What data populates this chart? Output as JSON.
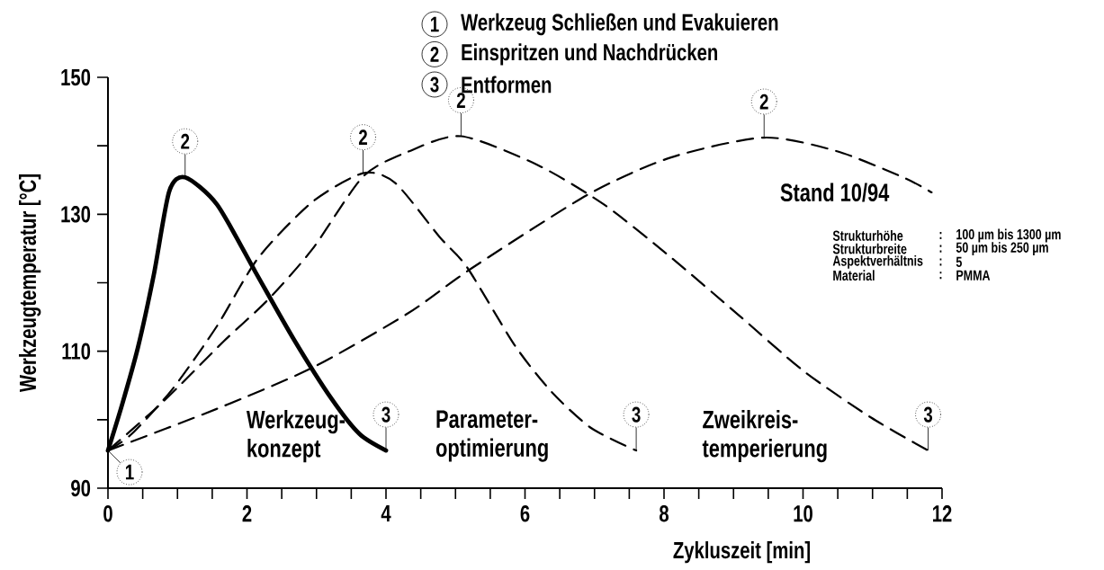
{
  "chart_data": {
    "type": "line",
    "xlabel": "Zykluszeit [min]",
    "ylabel": "Werkzeugtemperatur [°C]",
    "xlim": [
      0,
      12
    ],
    "ylim": [
      90,
      150
    ],
    "xticks": [
      0,
      {
        "value": 0.5,
        "label": null
      },
      {
        "value": 1,
        "label": null
      },
      {
        "value": 1.5,
        "label": null
      },
      2,
      {
        "value": 2.5,
        "label": null
      },
      {
        "value": 3,
        "label": null
      },
      {
        "value": 3.5,
        "label": null
      },
      4,
      {
        "value": 4.5,
        "label": null
      },
      {
        "value": 5,
        "label": null
      },
      {
        "value": 5.5,
        "label": null
      },
      6,
      {
        "value": 6.5,
        "label": null
      },
      {
        "value": 7,
        "label": null
      },
      {
        "value": 7.5,
        "label": null
      },
      8,
      {
        "value": 8.5,
        "label": null
      },
      {
        "value": 9,
        "label": null
      },
      {
        "value": 9.5,
        "label": null
      },
      10,
      {
        "value": 10.5,
        "label": null
      },
      {
        "value": 11,
        "label": null
      },
      {
        "value": 11.5,
        "label": null
      },
      12
    ],
    "yticks": [
      90,
      {
        "value": 100,
        "label": null
      },
      110,
      {
        "value": 120,
        "label": null
      },
      130,
      {
        "value": 140,
        "label": null
      },
      150
    ],
    "grid": false,
    "legend": "bottom",
    "marker": "none",
    "series": [
      {
        "name": "Werkzeug-konzept",
        "color": "#000000",
        "line_style": "solid",
        "x": [
          0,
          0.2,
          0.43,
          0.66,
          0.88,
          1.11,
          1.57,
          2.12,
          2.67,
          3.22,
          3.62,
          4
        ],
        "values": [
          95.5,
          102.1,
          110.5,
          121.2,
          133.3,
          135.4,
          131.4,
          121.6,
          111.8,
          103,
          97.9,
          95.5
        ]
      },
      {
        "name": "Parameter-optimierung",
        "color": "#000000",
        "line_style": "dashed",
        "x": [
          0,
          0.34,
          0.93,
          1.57,
          2.16,
          2.94,
          3.67,
          4.13,
          4.77,
          5.17,
          5.85,
          6.38,
          6.95,
          7.6
        ],
        "values": [
          95.5,
          97.9,
          104.5,
          113.7,
          123.6,
          131.8,
          136,
          134.6,
          126.7,
          122.2,
          110.9,
          104.1,
          98.8,
          95.5
        ]
      },
      {
        "name": "Zweikreis-temperierung",
        "color": "#000000",
        "line_style": "dashed",
        "x": [
          0,
          0.79,
          1.66,
          2.3,
          2.94,
          3.67,
          4.31,
          5.08,
          6.18,
          7.14,
          8.1,
          9.06,
          10.01,
          10.98,
          11.8
        ],
        "values": [
          95.5,
          102.6,
          111.4,
          117.5,
          124.9,
          135.5,
          139.1,
          141.4,
          137.2,
          131.4,
          123.7,
          115.4,
          107.1,
          100.3,
          95.5
        ]
      },
      {
        "name": "Stand 10/94",
        "color": "#000000",
        "line_style": "dashed",
        "x": [
          0,
          1.57,
          2.94,
          4.31,
          5.23,
          6.91,
          8.1,
          9.44,
          10.49,
          11.46,
          11.85
        ],
        "values": [
          95.5,
          101.6,
          107.6,
          115.5,
          122.1,
          132.9,
          138.3,
          141.2,
          139.2,
          135.3,
          133.2
        ]
      }
    ],
    "annotations": [
      "1",
      "Werkzeug Schließen und Evakuieren",
      "2",
      "Einspritzen und Nachdrücken",
      "3",
      "Entformen",
      "Strukturhöhe",
      ":",
      "100 µm bis 1300 µm",
      "Strukturbreite",
      ":",
      "50 µm bis 250 µm",
      "Aspektverhältnis",
      ":",
      "5",
      "Material",
      ":",
      "PMMA",
      {
        "text": "1",
        "x": 0,
        "y": 95.5
      },
      {
        "text": "2",
        "x": 1.11,
        "y": 135.4
      },
      {
        "text": "2",
        "x": 3.67,
        "y": 136
      },
      {
        "text": "2",
        "x": 5.08,
        "y": 141.4
      },
      {
        "text": "2",
        "x": 9.44,
        "y": 141.2
      },
      {
        "text": "3",
        "x": 4,
        "y": 95.5
      },
      {
        "text": "3",
        "x": 7.6,
        "y": 95.5
      },
      {
        "text": "3",
        "x": 11.8,
        "y": 95.5
      }
    ]
  }
}
